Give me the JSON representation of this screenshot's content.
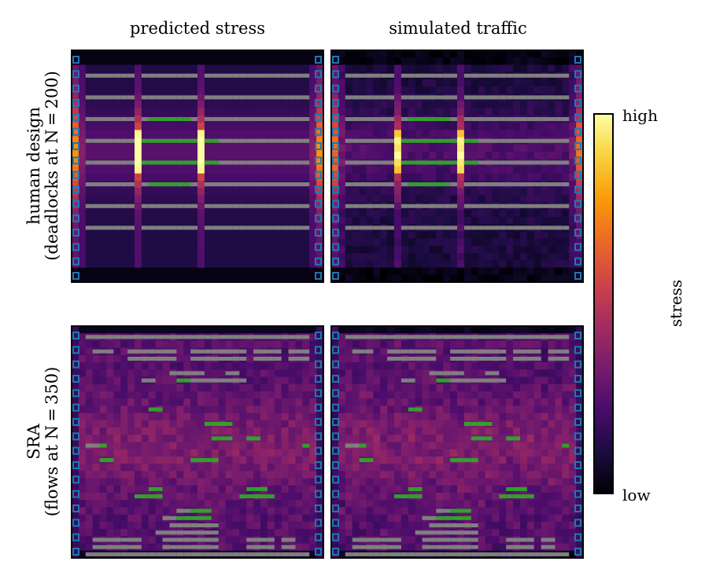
{
  "chart_data": {
    "type": "heatmap",
    "columns": [
      "predicted stress",
      "simulated traffic"
    ],
    "rows": [
      {
        "label_line1": "human design",
        "label_line2": "(deadlocks at N = 200)"
      },
      {
        "label_line1": "SRA",
        "label_line2": "(flows at N = 350)"
      }
    ],
    "colorbar": {
      "label": "stress",
      "high_label": "high",
      "low_label": "low",
      "colormap": "inferno",
      "stops": [
        "#000004",
        "#1b0c41",
        "#4a0c6b",
        "#781c6d",
        "#a52c60",
        "#cf4446",
        "#ed6925",
        "#fb9b06",
        "#f7d13d",
        "#fcffa4"
      ]
    },
    "grid": {
      "cols": 36,
      "rows": 32
    },
    "colors": {
      "shelf": "#808080",
      "green_shelf": "#33a02c",
      "port": "#1f78b4",
      "frame": "#000000"
    }
  }
}
